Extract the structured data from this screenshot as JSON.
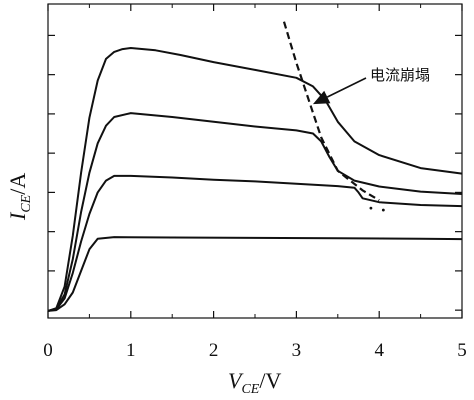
{
  "chart_data": {
    "type": "line",
    "xlabel": {
      "main": "V",
      "sub": "CE",
      "unit": "/V"
    },
    "ylabel": {
      "main": "I",
      "sub": "CE",
      "unit": "/A"
    },
    "xlim": [
      0,
      5
    ],
    "x_ticks": [
      "0",
      "1",
      "2",
      "3",
      "4",
      "5"
    ],
    "y_ticks_labeled": false,
    "grid": false,
    "series": [
      {
        "points": [
          [
            0,
            -0.02
          ],
          [
            0.1,
            0.0
          ],
          [
            0.2,
            0.15
          ],
          [
            0.3,
            0.45
          ],
          [
            0.4,
            1.0
          ],
          [
            0.5,
            1.55
          ],
          [
            0.6,
            1.82
          ],
          [
            0.8,
            1.86
          ],
          [
            1.5,
            1.85
          ],
          [
            2.5,
            1.84
          ],
          [
            3.5,
            1.83
          ],
          [
            4.5,
            1.82
          ],
          [
            5.0,
            1.81
          ]
        ]
      },
      {
        "points": [
          [
            0,
            -0.02
          ],
          [
            0.1,
            0.02
          ],
          [
            0.2,
            0.3
          ],
          [
            0.3,
            0.95
          ],
          [
            0.4,
            1.75
          ],
          [
            0.5,
            2.45
          ],
          [
            0.6,
            3.0
          ],
          [
            0.7,
            3.3
          ],
          [
            0.8,
            3.42
          ],
          [
            1.0,
            3.42
          ],
          [
            1.5,
            3.38
          ],
          [
            2.0,
            3.32
          ],
          [
            2.5,
            3.28
          ],
          [
            3.0,
            3.22
          ],
          [
            3.5,
            3.16
          ],
          [
            3.7,
            3.12
          ],
          [
            3.75,
            3.0
          ],
          [
            3.8,
            2.85
          ],
          [
            4.0,
            2.75
          ],
          [
            4.5,
            2.68
          ],
          [
            5.0,
            2.65
          ]
        ]
      },
      {
        "points": [
          [
            0,
            -0.02
          ],
          [
            0.1,
            0.03
          ],
          [
            0.2,
            0.4
          ],
          [
            0.3,
            1.3
          ],
          [
            0.4,
            2.5
          ],
          [
            0.5,
            3.5
          ],
          [
            0.6,
            4.25
          ],
          [
            0.7,
            4.7
          ],
          [
            0.8,
            4.92
          ],
          [
            1.0,
            5.02
          ],
          [
            1.5,
            4.92
          ],
          [
            2.0,
            4.8
          ],
          [
            2.5,
            4.68
          ],
          [
            3.0,
            4.58
          ],
          [
            3.2,
            4.5
          ],
          [
            3.3,
            4.3
          ],
          [
            3.4,
            3.9
          ],
          [
            3.5,
            3.55
          ],
          [
            3.7,
            3.3
          ],
          [
            4.0,
            3.15
          ],
          [
            4.5,
            3.02
          ],
          [
            5.0,
            2.96
          ]
        ]
      },
      {
        "points": [
          [
            0,
            -0.02
          ],
          [
            0.1,
            0.05
          ],
          [
            0.2,
            0.6
          ],
          [
            0.3,
            1.9
          ],
          [
            0.4,
            3.5
          ],
          [
            0.5,
            4.9
          ],
          [
            0.6,
            5.85
          ],
          [
            0.7,
            6.4
          ],
          [
            0.8,
            6.58
          ],
          [
            0.9,
            6.65
          ],
          [
            1.0,
            6.68
          ],
          [
            1.3,
            6.62
          ],
          [
            1.6,
            6.5
          ],
          [
            2.0,
            6.32
          ],
          [
            2.5,
            6.12
          ],
          [
            3.0,
            5.92
          ],
          [
            3.2,
            5.7
          ],
          [
            3.35,
            5.35
          ],
          [
            3.5,
            4.8
          ],
          [
            3.7,
            4.3
          ],
          [
            4.0,
            3.95
          ],
          [
            4.5,
            3.62
          ],
          [
            5.0,
            3.48
          ]
        ]
      }
    ],
    "dashed_boundary": [
      [
        2.85,
        7.35
      ],
      [
        3.0,
        6.3
      ],
      [
        3.15,
        5.35
      ],
      [
        3.3,
        4.4
      ],
      [
        3.5,
        3.55
      ],
      [
        3.8,
        3.05
      ],
      [
        4.0,
        2.8
      ]
    ],
    "extra_dots": [
      [
        3.9,
        2.6
      ],
      [
        4.05,
        2.55
      ]
    ],
    "annotation": {
      "text": "电流崩塌",
      "arrow_to": [
        3.2,
        5.25
      ]
    }
  }
}
